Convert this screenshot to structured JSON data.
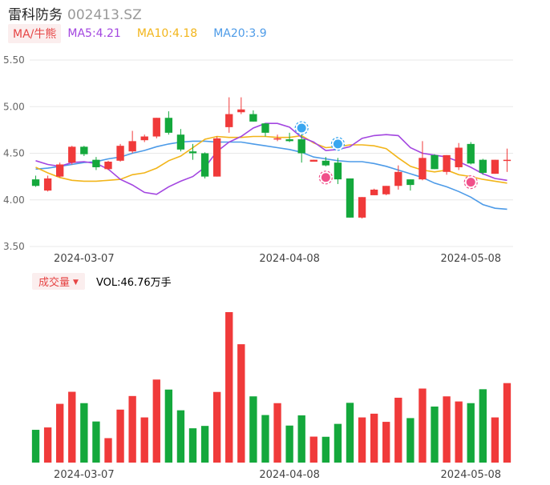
{
  "header": {
    "name": "雷科防务",
    "code": "002413.SZ"
  },
  "ma_legend": {
    "tag": "MA/牛熊",
    "items": [
      {
        "label": "MA5:4.21",
        "color": "#a346e0"
      },
      {
        "label": "MA10:4.18",
        "color": "#f2b51a"
      },
      {
        "label": "MA20:3.9",
        "color": "#4d9be8"
      }
    ]
  },
  "volume_legend": {
    "tag": "成交量",
    "value": "VOL:46.76万手"
  },
  "colors": {
    "up": "#f03a3a",
    "down": "#14a83c",
    "grid": "#e8e8e8",
    "axis_text": "#666666"
  },
  "chart_data": [
    {
      "type": "candlestick",
      "yticks": [
        "5.50",
        "5.00",
        "4.50",
        "4.00",
        "3.50"
      ],
      "ylim": [
        3.5,
        5.5
      ],
      "xtick_labels": [
        {
          "label": "2024-03-07",
          "index": 4
        },
        {
          "label": "2024-04-08",
          "index": 21
        },
        {
          "label": "2024-04-08",
          "index": 21
        },
        {
          "label": "2024-05-08",
          "index": 36
        }
      ],
      "candles": [
        {
          "o": 4.22,
          "h": 4.26,
          "l": 4.14,
          "c": 4.15
        },
        {
          "o": 4.1,
          "h": 4.26,
          "l": 4.09,
          "c": 4.23
        },
        {
          "o": 4.25,
          "h": 4.4,
          "l": 4.24,
          "c": 4.38
        },
        {
          "o": 4.4,
          "h": 4.58,
          "l": 4.38,
          "c": 4.57
        },
        {
          "o": 4.57,
          "h": 4.58,
          "l": 4.47,
          "c": 4.49
        },
        {
          "o": 4.43,
          "h": 4.46,
          "l": 4.32,
          "c": 4.35
        },
        {
          "o": 4.33,
          "h": 4.42,
          "l": 4.32,
          "c": 4.41
        },
        {
          "o": 4.42,
          "h": 4.6,
          "l": 4.41,
          "c": 4.58
        },
        {
          "o": 4.52,
          "h": 4.74,
          "l": 4.5,
          "c": 4.63
        },
        {
          "o": 4.64,
          "h": 4.7,
          "l": 4.62,
          "c": 4.68
        },
        {
          "o": 4.68,
          "h": 4.88,
          "l": 4.66,
          "c": 4.88
        },
        {
          "o": 4.88,
          "h": 4.95,
          "l": 4.7,
          "c": 4.72
        },
        {
          "o": 4.7,
          "h": 4.76,
          "l": 4.52,
          "c": 4.54
        },
        {
          "o": 4.52,
          "h": 4.6,
          "l": 4.43,
          "c": 4.5
        },
        {
          "o": 4.5,
          "h": 4.51,
          "l": 4.23,
          "c": 4.25
        },
        {
          "o": 4.25,
          "h": 4.68,
          "l": 4.25,
          "c": 4.66
        },
        {
          "o": 4.78,
          "h": 5.1,
          "l": 4.72,
          "c": 4.92
        },
        {
          "o": 4.94,
          "h": 5.1,
          "l": 4.92,
          "c": 4.97
        },
        {
          "o": 4.92,
          "h": 4.96,
          "l": 4.84,
          "c": 4.84
        },
        {
          "o": 4.82,
          "h": 4.82,
          "l": 4.68,
          "c": 4.72
        },
        {
          "o": 4.66,
          "h": 4.7,
          "l": 4.63,
          "c": 4.66
        },
        {
          "o": 4.65,
          "h": 4.72,
          "l": 4.62,
          "c": 4.63
        },
        {
          "o": 4.65,
          "h": 4.72,
          "l": 4.4,
          "c": 4.5
        },
        {
          "o": 4.41,
          "h": 4.43,
          "l": 4.41,
          "c": 4.43
        },
        {
          "o": 4.42,
          "h": 4.46,
          "l": 4.36,
          "c": 4.37
        },
        {
          "o": 4.4,
          "h": 4.45,
          "l": 4.17,
          "c": 4.22
        },
        {
          "o": 4.23,
          "h": 4.23,
          "l": 3.81,
          "c": 3.81
        },
        {
          "o": 3.81,
          "h": 4.03,
          "l": 3.8,
          "c": 4.03
        },
        {
          "o": 4.05,
          "h": 4.12,
          "l": 4.05,
          "c": 4.11
        },
        {
          "o": 4.06,
          "h": 4.15,
          "l": 4.05,
          "c": 4.15
        },
        {
          "o": 4.15,
          "h": 4.37,
          "l": 4.11,
          "c": 4.3
        },
        {
          "o": 4.22,
          "h": 4.22,
          "l": 4.1,
          "c": 4.16
        },
        {
          "o": 4.22,
          "h": 4.63,
          "l": 4.21,
          "c": 4.45
        },
        {
          "o": 4.48,
          "h": 4.49,
          "l": 4.33,
          "c": 4.33
        },
        {
          "o": 4.3,
          "h": 4.48,
          "l": 4.27,
          "c": 4.48
        },
        {
          "o": 4.35,
          "h": 4.61,
          "l": 4.32,
          "c": 4.56
        },
        {
          "o": 4.6,
          "h": 4.62,
          "l": 4.38,
          "c": 4.39
        },
        {
          "o": 4.43,
          "h": 4.44,
          "l": 4.27,
          "c": 4.29
        },
        {
          "o": 4.28,
          "h": 4.43,
          "l": 4.28,
          "c": 4.43
        },
        {
          "o": 4.42,
          "h": 4.55,
          "l": 4.3,
          "c": 4.43
        }
      ],
      "ma5": [
        4.42,
        4.38,
        4.36,
        4.4,
        4.41,
        4.39,
        4.33,
        4.22,
        4.16,
        4.08,
        4.06,
        4.14,
        4.2,
        4.25,
        4.35,
        4.52,
        4.62,
        4.68,
        4.77,
        4.82,
        4.82,
        4.78,
        4.67,
        4.62,
        4.53,
        4.54,
        4.57,
        4.66,
        4.69,
        4.7,
        4.69,
        4.56,
        4.5,
        4.48,
        4.46,
        4.41,
        4.35,
        4.28,
        4.23,
        4.21
      ],
      "ma10": [
        4.35,
        4.29,
        4.24,
        4.21,
        4.2,
        4.2,
        4.21,
        4.22,
        4.27,
        4.29,
        4.34,
        4.42,
        4.47,
        4.56,
        4.65,
        4.68,
        4.67,
        4.67,
        4.68,
        4.68,
        4.67,
        4.67,
        4.69,
        4.61,
        4.56,
        4.57,
        4.59,
        4.59,
        4.58,
        4.55,
        4.45,
        4.36,
        4.32,
        4.3,
        4.32,
        4.27,
        4.25,
        4.22,
        4.2,
        4.18
      ],
      "ma20": [
        4.33,
        4.34,
        4.36,
        4.38,
        4.4,
        4.41,
        4.44,
        4.46,
        4.5,
        4.53,
        4.57,
        4.6,
        4.62,
        4.63,
        4.63,
        4.62,
        4.62,
        4.62,
        4.6,
        4.58,
        4.56,
        4.54,
        4.51,
        4.46,
        4.44,
        4.42,
        4.41,
        4.41,
        4.39,
        4.36,
        4.32,
        4.28,
        4.24,
        4.18,
        4.14,
        4.09,
        4.03,
        3.95,
        3.91,
        3.9
      ]
    },
    {
      "type": "bar",
      "title": "成交量",
      "values": [
        19.3,
        20.7,
        34.6,
        41.7,
        35.0,
        24.2,
        14.4,
        31.2,
        39.2,
        26.6,
        48.9,
        43.0,
        30.8,
        20.2,
        21.6,
        41.6,
        88.6,
        69.7,
        39.0,
        28.0,
        35.0,
        21.8,
        27.8,
        15.3,
        15.2,
        22.8,
        35.2,
        26.6,
        28.8,
        24.0,
        38.2,
        26.2,
        43.6,
        33.0,
        39.0,
        36.0,
        35.0,
        43.2,
        26.6,
        46.8
      ]
    }
  ]
}
